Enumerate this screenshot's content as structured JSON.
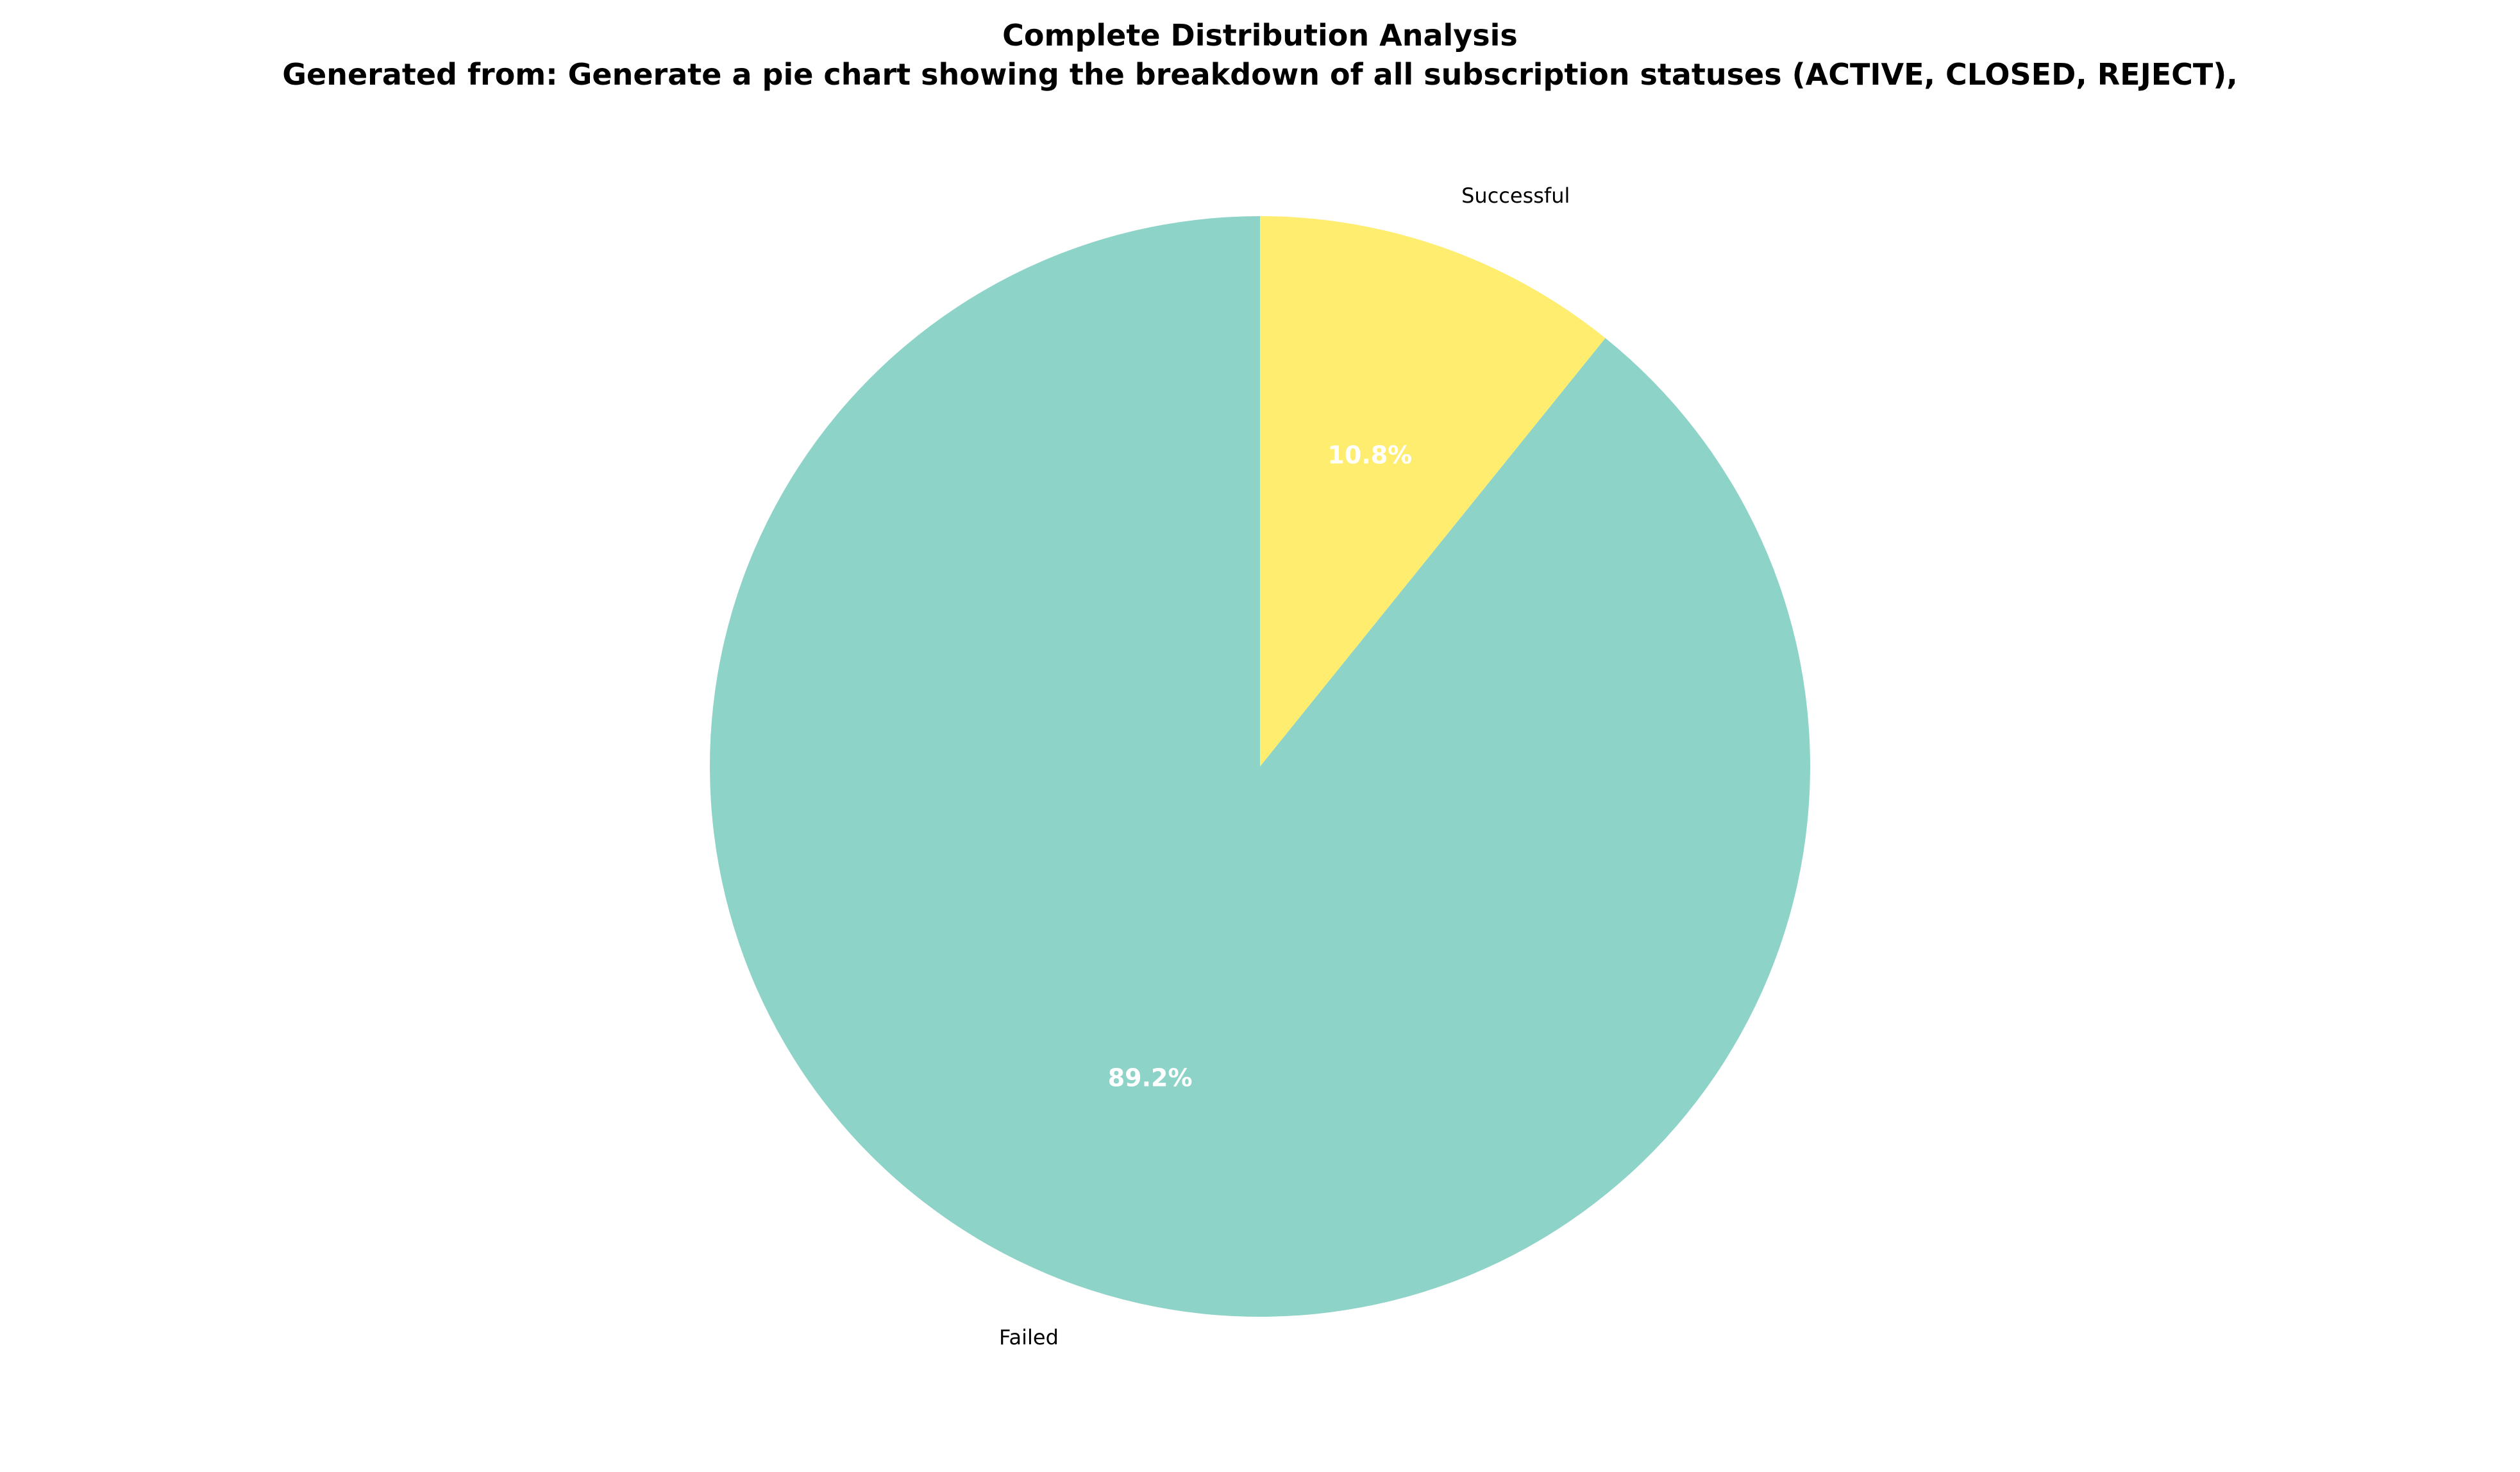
{
  "chart_data": {
    "type": "pie",
    "title": "Complete Distribution Analysis",
    "subtitle": "Generated from: Generate a pie chart showing the breakdown of all subscription statuses (ACTIVE, CLOSED, REJECT),",
    "start_angle_deg": 90,
    "direction": "counterclockwise",
    "slices": [
      {
        "label": "Failed",
        "value": 89.2,
        "pct_label": "89.2%",
        "color": "#8dd3c7"
      },
      {
        "label": "Successful",
        "value": 10.8,
        "pct_label": "10.8%",
        "color": "#ffed6f"
      }
    ],
    "legend": "none"
  }
}
